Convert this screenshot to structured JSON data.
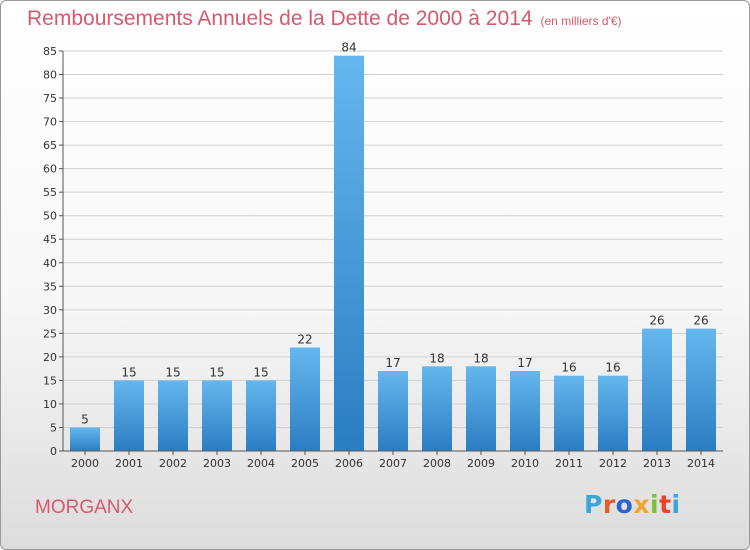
{
  "header": {
    "title": "Remboursements Annuels de la Dette de 2000 à 2014",
    "subtitle": "(en milliers d'€)"
  },
  "footer": {
    "commune": "MORGANX",
    "logo_text": "Proxiti",
    "logo_colors": [
      "#3aa6d9",
      "#e85c2c",
      "#2f63c9",
      "#f2a32e",
      "#7cbf3a",
      "#e8452c",
      "#3aa6d9"
    ]
  },
  "colors": {
    "title": "#d65a6e",
    "bar_light": "#66b7ee",
    "bar_dark": "#2b7dc2",
    "grid": "#d0d0d0"
  },
  "chart_data": {
    "type": "bar",
    "title": "Remboursements Annuels de la Dette de 2000 à 2014",
    "subtitle": "(en milliers d'€)",
    "xlabel": "",
    "ylabel": "",
    "categories": [
      "2000",
      "2001",
      "2002",
      "2003",
      "2004",
      "2005",
      "2006",
      "2007",
      "2008",
      "2009",
      "2010",
      "2011",
      "2012",
      "2013",
      "2014"
    ],
    "values": [
      5,
      15,
      15,
      15,
      15,
      22,
      84,
      17,
      18,
      18,
      17,
      16,
      16,
      26,
      26
    ],
    "ylim": [
      0,
      85
    ],
    "yticks": [
      0,
      5,
      10,
      15,
      20,
      25,
      30,
      35,
      40,
      45,
      50,
      55,
      60,
      65,
      70,
      75,
      80,
      85
    ],
    "grid": true,
    "legend": "none"
  }
}
